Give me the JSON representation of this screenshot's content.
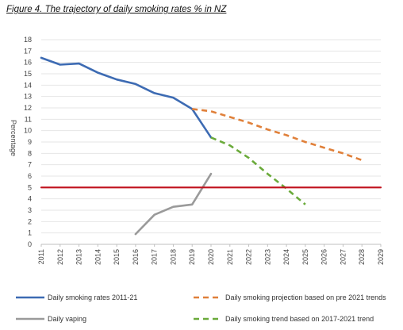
{
  "title": "Figure 4. The trajectory of daily smoking rates % in NZ",
  "colors": {
    "smoking": "#3d6bb3",
    "vaping": "#9a9a9a",
    "projection": "#e0803a",
    "trend": "#6aaa3a",
    "reference": "#c0101c",
    "grid": "#e6e6e6"
  },
  "chart_data": {
    "type": "line",
    "title": "Figure 4. The trajectory of daily smoking rates % in NZ",
    "xlabel": "",
    "ylabel": "Percentage",
    "ylim": [
      0,
      18
    ],
    "xlim": [
      2011,
      2029
    ],
    "yticks": [
      "0",
      "1",
      "2",
      "3",
      "4",
      "5",
      "6",
      "7",
      "8",
      "9",
      "10",
      "11",
      "12",
      "13",
      "14",
      "15",
      "16",
      "17",
      "18"
    ],
    "xticks": [
      "2011",
      "2012",
      "2013",
      "2014",
      "2015",
      "2016",
      "2017",
      "2018",
      "2019",
      "2020",
      "2021",
      "2022",
      "2023",
      "2024",
      "2025",
      "2026",
      "2027",
      "2028",
      "2029"
    ],
    "grid": "horizontal",
    "legend_position": "bottom",
    "series": [
      {
        "name": "Daily smoking rates 2011-21",
        "style": "solid",
        "x": [
          2011,
          2012,
          2013,
          2014,
          2015,
          2016,
          2017,
          2018,
          2019,
          2020
        ],
        "y": [
          16.4,
          15.8,
          15.9,
          15.1,
          14.5,
          14.1,
          13.3,
          12.9,
          11.9,
          9.4
        ]
      },
      {
        "name": "Daily vaping",
        "style": "solid",
        "x": [
          2016,
          2017,
          2018,
          2019,
          2020
        ],
        "y": [
          0.9,
          2.6,
          3.3,
          3.5,
          6.2
        ]
      },
      {
        "name": "Daily smoking projection based on pre 2021 trends",
        "style": "dashed",
        "x": [
          2019,
          2020,
          2021,
          2022,
          2023,
          2024,
          2025,
          2026,
          2027,
          2028
        ],
        "y": [
          11.9,
          11.7,
          11.2,
          10.7,
          10.1,
          9.6,
          9.0,
          8.5,
          8.0,
          7.4
        ]
      },
      {
        "name": "Daily smoking trend based on 2017-2021 trend",
        "style": "dashed",
        "x": [
          2020,
          2021,
          2022,
          2023,
          2024,
          2025
        ],
        "y": [
          9.4,
          8.7,
          7.6,
          6.2,
          4.9,
          3.5
        ]
      },
      {
        "name": "",
        "style": "solid",
        "x": [
          2011,
          2029
        ],
        "y": [
          5,
          5
        ]
      }
    ]
  }
}
